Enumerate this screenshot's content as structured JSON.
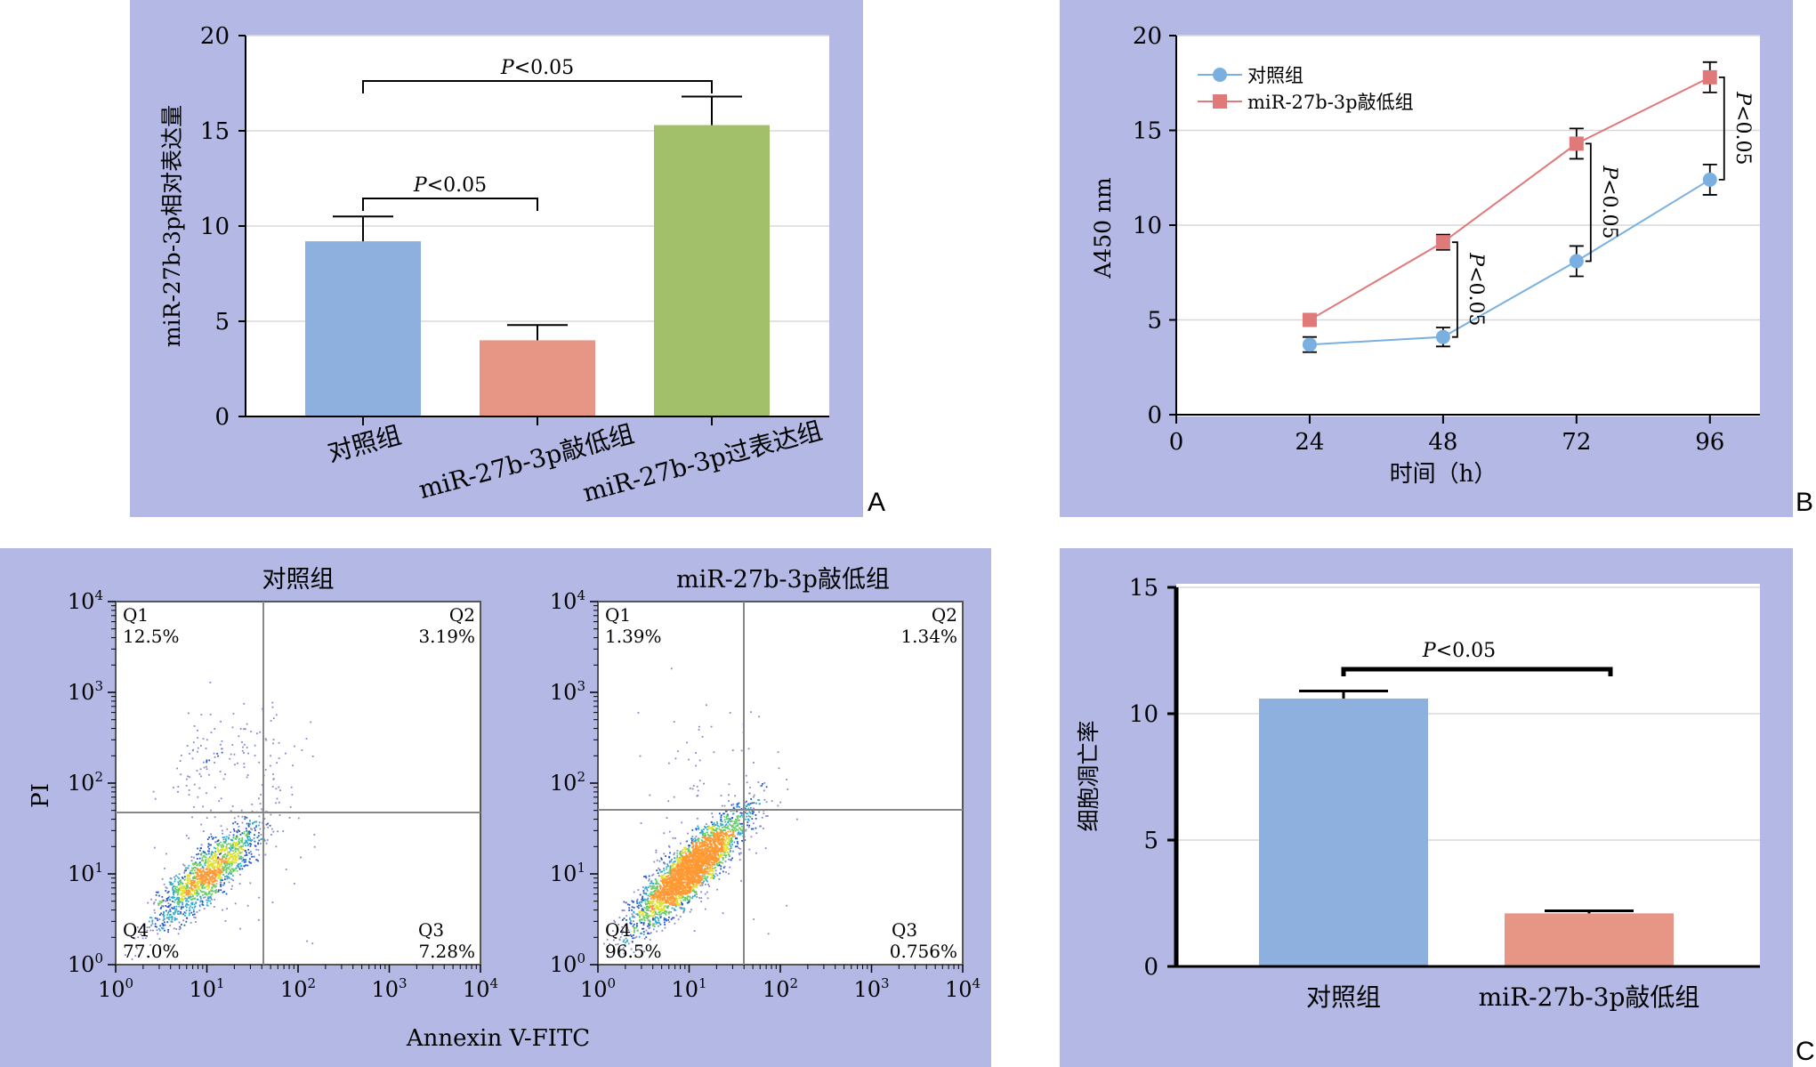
{
  "panel_letters": {
    "a": "A",
    "b": "B",
    "c": "C"
  },
  "colors": {
    "panel_bg": "#b3b9e4",
    "blue": "#8db0df",
    "salmon": "#e79585",
    "green": "#a2bf6a",
    "line_blue": "#7ab0e0",
    "line_red": "#e07a7a"
  },
  "chart_data": [
    {
      "type": "bar",
      "panel": "A",
      "categories": [
        "对照组",
        "miR-27b-3p敲低组",
        "miR-27b-3p过表达组"
      ],
      "values": [
        9.2,
        4.0,
        15.3
      ],
      "errors": [
        1.3,
        0.8,
        1.5
      ],
      "ylabel": "miR-27b-3p相对表达量",
      "ylim": [
        0,
        20
      ],
      "yticks": [
        0,
        5,
        10,
        15,
        20
      ],
      "annotations": [
        "P<0.05",
        "P<0.05"
      ],
      "grid": true
    },
    {
      "type": "line",
      "panel": "B",
      "x": [
        24,
        48,
        72,
        96
      ],
      "xlim": [
        0,
        105
      ],
      "xticks": [
        0,
        24,
        48,
        72,
        96
      ],
      "xlabel": "时间（h）",
      "ylabel": "A450 nm",
      "ylim": [
        0,
        20
      ],
      "yticks": [
        0,
        5,
        10,
        15,
        20
      ],
      "series": [
        {
          "name": "对照组",
          "values": [
            3.7,
            4.1,
            8.1,
            12.4
          ],
          "errors": [
            0.4,
            0.5,
            0.8,
            0.8
          ]
        },
        {
          "name": "miR-27b-3p敲低组",
          "values": [
            5.0,
            9.1,
            14.3,
            17.8
          ],
          "errors": [
            0.2,
            0.4,
            0.8,
            0.8
          ]
        }
      ],
      "annotations": [
        "P<0.05",
        "P<0.05",
        "P<0.05"
      ],
      "legend": "top-left",
      "grid": true
    },
    {
      "type": "scatter",
      "panel": "C-left",
      "title": "对照组",
      "xlabel": "Annexin V-FITC",
      "ylabel": "PI",
      "scale": "log",
      "axis_range": [
        1,
        10000
      ],
      "tick_labels": [
        "10^0",
        "10^1",
        "10^2",
        "10^3",
        "10^4"
      ],
      "quadrants": [
        {
          "name": "Q1",
          "value": "12.5%"
        },
        {
          "name": "Q2",
          "value": "3.19%"
        },
        {
          "name": "Q3",
          "value": "7.28%"
        },
        {
          "name": "Q4",
          "value": "77.0%"
        }
      ]
    },
    {
      "type": "scatter",
      "panel": "C-middle",
      "title": "miR-27b-3p敲低组",
      "scale": "log",
      "axis_range": [
        1,
        10000
      ],
      "tick_labels": [
        "10^0",
        "10^1",
        "10^2",
        "10^3",
        "10^4"
      ],
      "quadrants": [
        {
          "name": "Q1",
          "value": "1.39%"
        },
        {
          "name": "Q2",
          "value": "1.34%"
        },
        {
          "name": "Q3",
          "value": "0.756%"
        },
        {
          "name": "Q4",
          "value": "96.5%"
        }
      ]
    },
    {
      "type": "bar",
      "panel": "C-right",
      "categories": [
        "对照组",
        "miR-27b-3p敲低组"
      ],
      "values": [
        10.6,
        2.1
      ],
      "errors": [
        0.3,
        0.1
      ],
      "ylabel": "细胞凋亡率",
      "ylim": [
        0,
        15
      ],
      "yticks": [
        0,
        5,
        10,
        15
      ],
      "annotations": [
        "P<0.05"
      ],
      "grid": true
    }
  ]
}
